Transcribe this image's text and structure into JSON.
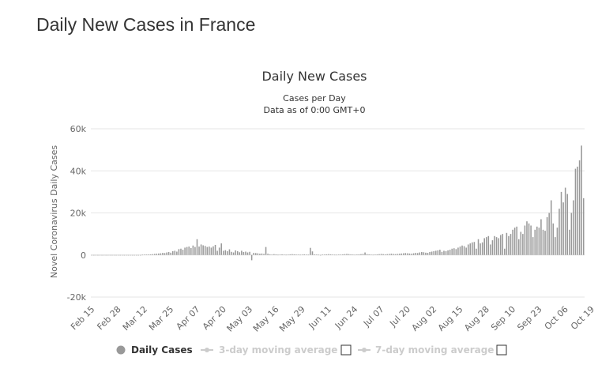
{
  "page_title": "Daily New Cases in France",
  "legend": [
    {
      "label": "Daily Cases",
      "active": true
    },
    {
      "label": "3-day moving average",
      "active": false
    },
    {
      "label": "7-day moving average",
      "active": false
    }
  ],
  "colors": {
    "bar": "#999999",
    "inactive": "#cccccc",
    "grid": "#e6e6e6",
    "text": "#333333"
  },
  "chart_data": {
    "type": "bar",
    "title": "Daily New Cases",
    "subtitle": "Cases per Day",
    "subtitle2": "Data as of 0:00 GMT+0",
    "xlabel": "",
    "ylabel": "Novel Coronavirus Daily Cases",
    "ylim": [
      -20000,
      60000
    ],
    "yticks": [
      -20000,
      0,
      20000,
      40000,
      60000
    ],
    "ytick_labels": [
      "-20k",
      "0",
      "20k",
      "40k",
      "60k"
    ],
    "xtick_labels": [
      "Feb 15",
      "Feb 28",
      "Mar 12",
      "Mar 25",
      "Apr 07",
      "Apr 20",
      "May 03",
      "May 16",
      "May 29",
      "Jun 11",
      "Jun 24",
      "Jul 07",
      "Jul 20",
      "Aug 02",
      "Aug 15",
      "Aug 28",
      "Sep 10",
      "Sep 23",
      "Oct 06",
      "Oct 19"
    ],
    "grid": true,
    "series": [
      {
        "name": "Daily Cases",
        "values": [
          0,
          0,
          0,
          0,
          0,
          0,
          0,
          0,
          0,
          0,
          0,
          0,
          0,
          0,
          0,
          0,
          0,
          0,
          0,
          0,
          0,
          0,
          0,
          0,
          0,
          100,
          150,
          200,
          250,
          300,
          400,
          500,
          600,
          700,
          800,
          1000,
          900,
          1200,
          1400,
          1100,
          1800,
          2000,
          1600,
          2800,
          3000,
          2500,
          3500,
          3800,
          4000,
          3300,
          4500,
          3800,
          7500,
          4000,
          5000,
          4600,
          4300,
          3800,
          4000,
          3500,
          4100,
          4800,
          2000,
          3500,
          5500,
          2000,
          2300,
          1800,
          2700,
          1500,
          1200,
          2200,
          1800,
          1300,
          2000,
          1400,
          1600,
          1200,
          1500,
          -2500,
          1000,
          900,
          800,
          600,
          700,
          500,
          3800,
          600,
          300,
          200,
          400,
          300,
          100,
          200,
          300,
          150,
          100,
          200,
          300,
          400,
          300,
          200,
          150,
          100,
          200,
          300,
          200,
          100,
          3400,
          1700,
          300,
          200,
          100,
          -100,
          150,
          200,
          300,
          400,
          300,
          200,
          100,
          100,
          150,
          200,
          300,
          400,
          500,
          400,
          300,
          200,
          100,
          200,
          300,
          400,
          500,
          1200,
          400,
          300,
          200,
          100,
          200,
          300,
          400,
          500,
          400,
          300,
          400,
          500,
          600,
          500,
          400,
          500,
          600,
          700,
          800,
          900,
          800,
          700,
          600,
          800,
          1000,
          900,
          1200,
          1400,
          1300,
          1100,
          1000,
          1400,
          1600,
          1800,
          2000,
          2200,
          2500,
          1500,
          2000,
          1800,
          2200,
          2500,
          3000,
          3200,
          2800,
          3500,
          4000,
          4500,
          4200,
          3500,
          5000,
          5500,
          6000,
          6200,
          3000,
          7500,
          5500,
          6000,
          8000,
          8500,
          9000,
          5000,
          7000,
          9000,
          8500,
          8000,
          9500,
          10000,
          3000,
          10500,
          9000,
          10000,
          12000,
          13000,
          13500,
          7500,
          11000,
          10000,
          14000,
          16000,
          15000,
          14000,
          8500,
          12000,
          13500,
          13000,
          17000,
          12000,
          11500,
          18000,
          20000,
          26000,
          15000,
          8500,
          13000,
          22000,
          30000,
          25000,
          32000,
          29000,
          12000,
          20000,
          26000,
          41000,
          42000,
          45000,
          52000,
          27000
        ]
      }
    ]
  }
}
